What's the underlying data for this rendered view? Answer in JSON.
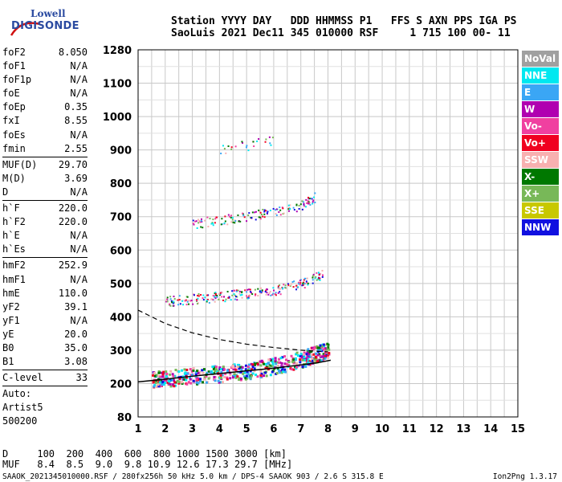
{
  "logo": {
    "line1": "Lowell",
    "line2": "DIGISONDE"
  },
  "header": {
    "line1": "Station YYYY DAY   DDD HHMMSS P1   FFS S AXN PPS IGA PS",
    "line2": "SaoLuis 2021 Dec11 345 010000 RSF     1 715 100 00- 11"
  },
  "params": {
    "group1": [
      {
        "name": "foF2",
        "value": "8.050"
      },
      {
        "name": "foF1",
        "value": "N/A"
      },
      {
        "name": "foF1p",
        "value": "N/A"
      },
      {
        "name": "foE",
        "value": "N/A"
      },
      {
        "name": "foEp",
        "value": "0.35"
      },
      {
        "name": "fxI",
        "value": "8.55"
      },
      {
        "name": "foEs",
        "value": "N/A"
      },
      {
        "name": "fmin",
        "value": "2.55"
      }
    ],
    "group2": [
      {
        "name": "MUF(D)",
        "value": "29.70"
      },
      {
        "name": "M(D)",
        "value": "3.69"
      },
      {
        "name": "D",
        "value": "N/A"
      }
    ],
    "group3": [
      {
        "name": "h`F",
        "value": "220.0"
      },
      {
        "name": "h`F2",
        "value": "220.0"
      },
      {
        "name": "h`E",
        "value": "N/A"
      },
      {
        "name": "h`Es",
        "value": "N/A"
      }
    ],
    "group4": [
      {
        "name": "hmF2",
        "value": "252.9"
      },
      {
        "name": "hmF1",
        "value": "N/A"
      },
      {
        "name": "hmE",
        "value": "110.0"
      },
      {
        "name": "yF2",
        "value": "39.1"
      },
      {
        "name": "yF1",
        "value": "N/A"
      },
      {
        "name": "yE",
        "value": "20.0"
      },
      {
        "name": "B0",
        "value": "35.0"
      },
      {
        "name": "B1",
        "value": "3.08"
      }
    ],
    "group5": [
      {
        "name": "C-level",
        "value": "33"
      }
    ],
    "group6": [
      {
        "name": "Auto:",
        "value": ""
      },
      {
        "name": "Artist5",
        "value": ""
      },
      {
        "name": "500200",
        "value": ""
      }
    ]
  },
  "legend": [
    {
      "label": "NoVal",
      "color": "#a0a0a0"
    },
    {
      "label": "NNE",
      "color": "#00e8f0"
    },
    {
      "label": "E",
      "color": "#3aa6f5"
    },
    {
      "label": "W",
      "color": "#b000b0"
    },
    {
      "label": "Vo-",
      "color": "#f040a0"
    },
    {
      "label": "Vo+",
      "color": "#f00020"
    },
    {
      "label": "SSW",
      "color": "#f8b0b0"
    },
    {
      "label": "X-",
      "color": "#007800"
    },
    {
      "label": "X+",
      "color": "#78b858"
    },
    {
      "label": "SSE",
      "color": "#c8c800"
    },
    {
      "label": "NNW",
      "color": "#1010e0"
    }
  ],
  "chart_data": {
    "type": "scatter",
    "xlabel": "",
    "ylabel": "",
    "x_ticks": [
      1,
      2,
      3,
      4,
      5,
      6,
      7,
      8,
      9,
      10,
      11,
      12,
      13,
      14,
      15
    ],
    "y_ticks": [
      80,
      200,
      300,
      400,
      500,
      600,
      700,
      800,
      900,
      1000,
      1100,
      1280
    ],
    "xlim": [
      1,
      15
    ],
    "ylim": [
      80,
      1280
    ],
    "grid": true,
    "trace_layers": [
      {
        "name": "F-trace",
        "points": [
          [
            1.5,
            215
          ],
          [
            2,
            218
          ],
          [
            3,
            225
          ],
          [
            4,
            232
          ],
          [
            5,
            240
          ],
          [
            6,
            255
          ],
          [
            7,
            275
          ],
          [
            7.5,
            290
          ],
          [
            8,
            305
          ]
        ]
      },
      {
        "name": "2F-echo",
        "points": [
          [
            2,
            448
          ],
          [
            3,
            455
          ],
          [
            4,
            462
          ],
          [
            5,
            470
          ],
          [
            6,
            480
          ],
          [
            7,
            500
          ],
          [
            7.8,
            530
          ]
        ]
      },
      {
        "name": "3F-echo",
        "points": [
          [
            3,
            680
          ],
          [
            4,
            690
          ],
          [
            5,
            702
          ],
          [
            6,
            715
          ],
          [
            7,
            735
          ],
          [
            7.5,
            760
          ]
        ]
      },
      {
        "name": "4F-echo",
        "points": [
          [
            4,
            900
          ],
          [
            5,
            915
          ],
          [
            6,
            930
          ]
        ]
      }
    ],
    "profile_curve": [
      [
        1,
        205
      ],
      [
        2,
        213
      ],
      [
        3,
        222
      ],
      [
        4,
        230
      ],
      [
        5,
        238
      ],
      [
        6,
        246
      ],
      [
        7,
        256
      ],
      [
        7.6,
        262
      ],
      [
        8.1,
        270
      ]
    ],
    "dashed_curve": [
      [
        1,
        420
      ],
      [
        2,
        380
      ],
      [
        3,
        352
      ],
      [
        4,
        332
      ],
      [
        5,
        318
      ],
      [
        6,
        308
      ],
      [
        7,
        300
      ],
      [
        8,
        295
      ]
    ]
  },
  "muf_table": {
    "d_row": "D     100  200  400  600  800 1000 1500 3000 [km]",
    "muf_row": "MUF   8.4  8.5  9.0  9.8 10.9 12.6 17.3 29.7 [MHz]"
  },
  "footer": "SAAOK_2021345010000.RSF / 280fx256h 50 kHz 5.0 km / DPS-4 SAAOK 903 / 2.6 S 315.8 E",
  "version": "Ion2Png 1.3.17"
}
